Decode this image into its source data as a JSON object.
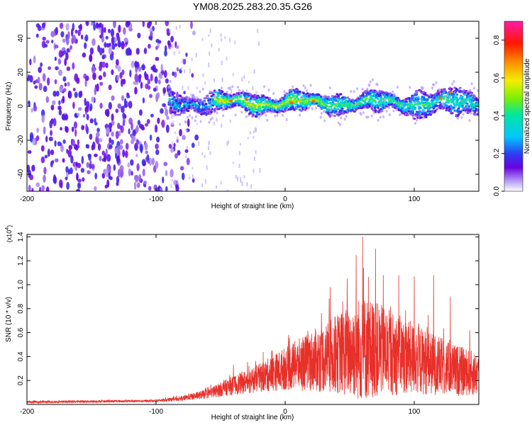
{
  "title": "YM08.2025.283.20.35.G26",
  "colors": {
    "snr_line": "#e8302a",
    "frame": "#000000"
  },
  "chart_data": [
    {
      "type": "heatmap",
      "name": "spectrogram",
      "xlabel": "Height of straight line (km)",
      "ylabel": "Frequency (Hz)",
      "xlim": [
        -200,
        150
      ],
      "ylim": [
        -50,
        50
      ],
      "x_ticks": [
        -200,
        -100,
        0,
        100
      ],
      "x_tick_labels": [
        "-200",
        "-100",
        "0",
        "100"
      ],
      "y_ticks": [
        -40,
        -20,
        0,
        20,
        40
      ],
      "y_tick_labels": [
        "-40",
        "-20",
        "0",
        "20",
        "40"
      ],
      "colorbar": {
        "label": "Normalized spectral amplitude",
        "range": [
          0,
          0.9
        ],
        "ticks": [
          0.0,
          0.2,
          0.4,
          0.6,
          0.8
        ],
        "tick_labels": [
          "0.0",
          "0.2",
          "0.4",
          "0.6",
          "0.8"
        ]
      },
      "features": {
        "noise_region_x": [
          -200,
          -85
        ],
        "signal_start_x": -90,
        "signal_center_freq": 2,
        "signal_halfwidth_freq": 5,
        "max_amplitude_region_x": [
          -55,
          30
        ]
      }
    },
    {
      "type": "line",
      "name": "snr",
      "xlabel": "Height of straight line (km)",
      "ylabel": "SNR (10 * v/v)",
      "scale_label": "(x10",
      "scale_exp": "4",
      "scale_close": ")",
      "xlim": [
        -200,
        150
      ],
      "ylim": [
        0,
        1.42
      ],
      "x_ticks": [
        -200,
        -100,
        0,
        100
      ],
      "x_tick_labels": [
        "-200",
        "-100",
        "0",
        "100"
      ],
      "y_ticks": [
        0.2,
        0.4,
        0.6,
        0.8,
        1.0,
        1.2,
        1.4
      ],
      "y_tick_labels": [
        "0.2",
        "0.4",
        "0.6",
        "0.8",
        "1.0",
        "1.2",
        "1.4"
      ],
      "envelope": {
        "x": [
          -200,
          -100,
          -80,
          -60,
          -40,
          -30,
          -20,
          0,
          20,
          40,
          55,
          60,
          70,
          90,
          110,
          130,
          150
        ],
        "mean": [
          0.02,
          0.03,
          0.05,
          0.09,
          0.16,
          0.19,
          0.22,
          0.3,
          0.36,
          0.42,
          0.46,
          0.47,
          0.46,
          0.41,
          0.35,
          0.29,
          0.25
        ],
        "spread": [
          0.01,
          0.01,
          0.02,
          0.04,
          0.08,
          0.1,
          0.12,
          0.18,
          0.25,
          0.33,
          0.42,
          0.45,
          0.4,
          0.33,
          0.27,
          0.22,
          0.18
        ]
      },
      "peaks": [
        {
          "x": 60,
          "y": 1.4
        },
        {
          "x": 70,
          "y": 1.3
        },
        {
          "x": 55,
          "y": 1.25
        },
        {
          "x": 48,
          "y": 1.05
        },
        {
          "x": 35,
          "y": 0.98
        },
        {
          "x": 115,
          "y": 1.08
        },
        {
          "x": 128,
          "y": 0.9
        },
        {
          "x": 100,
          "y": 1.07
        },
        {
          "x": 88,
          "y": 1.08
        },
        {
          "x": 76,
          "y": 1.08
        },
        {
          "x": 143,
          "y": 0.62
        },
        {
          "x": -40,
          "y": 0.33
        },
        {
          "x": -28,
          "y": 0.32
        },
        {
          "x": 8,
          "y": 0.48
        },
        {
          "x": -10,
          "y": 0.45
        }
      ]
    }
  ]
}
